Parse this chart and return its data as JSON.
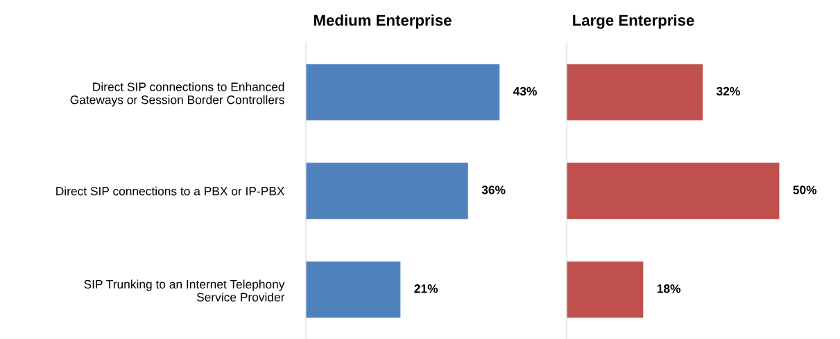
{
  "chart_data": [
    {
      "type": "bar",
      "orientation": "horizontal",
      "title": "Medium Enterprise",
      "categories": [
        "Direct SIP connections to Enhanced\nGateways or Session Border Controllers",
        "Direct SIP connections to a PBX or IP-PBX",
        "SIP Trunking to an Internet Telephony\nService Provider"
      ],
      "values": [
        43,
        36,
        21
      ],
      "value_labels": [
        "43%",
        "36%",
        "21%"
      ],
      "color": "#4f81bd",
      "tick_labels": "y",
      "grid": false,
      "legend": false
    },
    {
      "type": "bar",
      "orientation": "horizontal",
      "title": "Large Enterprise",
      "categories": [
        null,
        null,
        null
      ],
      "values": [
        32,
        50,
        18
      ],
      "value_labels": [
        "32%",
        "50%",
        "18%"
      ],
      "color": "#c0504d",
      "tick_labels": false,
      "grid": false,
      "legend": false
    }
  ]
}
